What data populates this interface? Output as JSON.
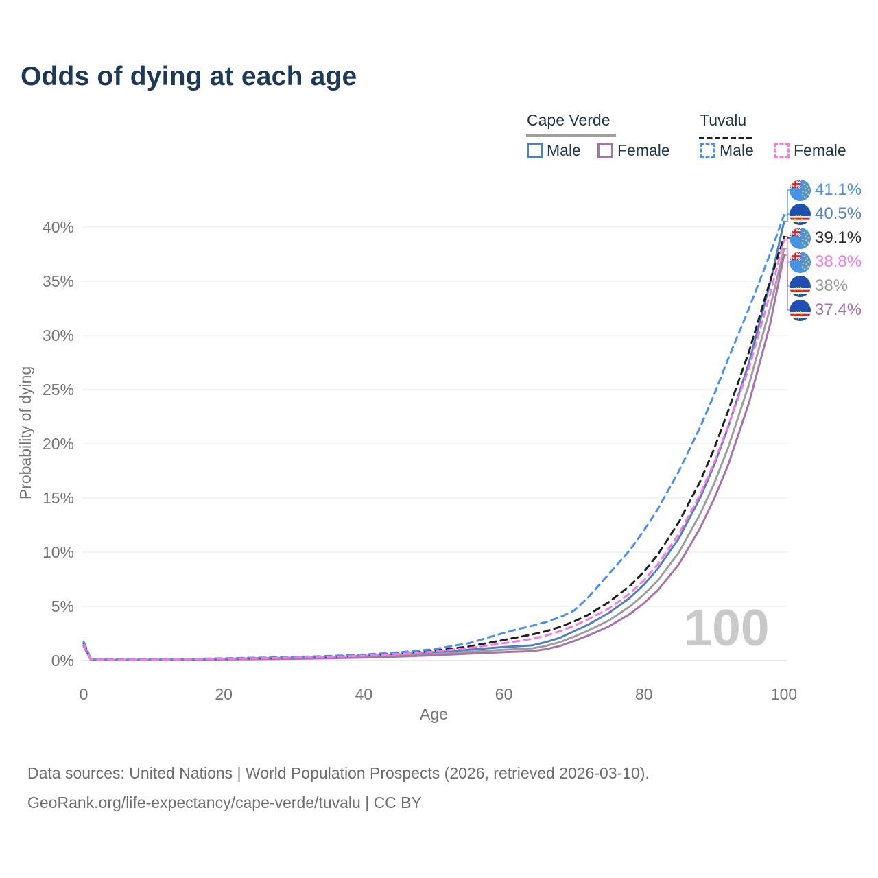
{
  "header": {
    "title": "Odds of dying at each age"
  },
  "legend": {
    "groups": [
      {
        "label": "Cape Verde",
        "line_color": "#9e9e9e",
        "line_style": "solid",
        "items": [
          {
            "label": "Male",
            "color": "#4e80c4",
            "style": "solid"
          },
          {
            "label": "Female",
            "color": "#a673ab",
            "style": "solid"
          }
        ]
      },
      {
        "label": "Tuvalu",
        "line_color": "#1f1f1f",
        "line_style": "dashed",
        "items": [
          {
            "label": "Male",
            "color": "#4a90f2",
            "style": "dashed"
          },
          {
            "label": "Female",
            "color": "#f878e2",
            "style": "dashed"
          }
        ]
      }
    ]
  },
  "end_labels": [
    {
      "value": "41.1%",
      "series": "Tuvalu Male",
      "color": "#4a90f2",
      "flag": "tuvalu"
    },
    {
      "value": "40.5%",
      "series": "Cape Verde Male",
      "color": "#5585c8",
      "flag": "cape-verde"
    },
    {
      "value": "39.1%",
      "series": "Tuvalu",
      "color": "#2b2b2b",
      "flag": "tuvalu"
    },
    {
      "value": "38.8%",
      "series": "Tuvalu Female",
      "color": "#f878e2",
      "flag": "tuvalu"
    },
    {
      "value": "38%",
      "series": "Cape Verde",
      "color": "#9b9b9b",
      "flag": "cape-verde"
    },
    {
      "value": "37.4%",
      "series": "Cape Verde Female",
      "color": "#a673ab",
      "flag": "cape-verde"
    }
  ],
  "footer": {
    "line1": "Data sources: United Nations | World Population Prospects (2026, retrieved 2026-03-10).",
    "line2": "GeoRank.org/life-expectancy/cape-verde/tuvalu | CC BY"
  },
  "chart_data": {
    "type": "line",
    "title": "Odds of dying at each age",
    "xlabel": "Age",
    "ylabel": "Probability of dying",
    "watermark": "100",
    "grid": true,
    "legend_position": "top-right",
    "xlim": [
      0,
      100
    ],
    "ylim": [
      0,
      43
    ],
    "x_tick_values": [
      0,
      20,
      40,
      60,
      80,
      100
    ],
    "x_tick_labels": [
      "0",
      "20",
      "40",
      "60",
      "80",
      "100"
    ],
    "y_tick_values": [
      0,
      5,
      10,
      15,
      20,
      25,
      30,
      35,
      40
    ],
    "y_tick_labels": [
      "0%",
      "5%",
      "10%",
      "15%",
      "20%",
      "25%",
      "30%",
      "35%",
      "40%"
    ],
    "ages": [
      0,
      1,
      2,
      5,
      10,
      15,
      20,
      25,
      30,
      35,
      40,
      45,
      50,
      55,
      60,
      62,
      64,
      66,
      68,
      70,
      72,
      75,
      78,
      80,
      82,
      85,
      88,
      90,
      92,
      95,
      98,
      100
    ],
    "series": [
      {
        "name": "Cape Verde Male",
        "country": "Cape Verde",
        "sex": "Male",
        "style": "solid",
        "color": "#4e80c4",
        "end_label": "40.5%",
        "label_index": 1,
        "values": [
          1.5,
          0.12,
          0.08,
          0.06,
          0.07,
          0.1,
          0.15,
          0.2,
          0.25,
          0.32,
          0.42,
          0.56,
          0.76,
          1.0,
          1.25,
          1.32,
          1.4,
          1.7,
          2.1,
          2.7,
          3.3,
          4.4,
          5.8,
          7.0,
          8.5,
          11.3,
          15.0,
          18.0,
          21.5,
          27.5,
          34.8,
          40.5
        ]
      },
      {
        "name": "Cape Verde",
        "country": "Cape Verde",
        "sex": "Both",
        "style": "solid",
        "color": "#9e9e9e",
        "end_label": "38%",
        "label_index": 4,
        "values": [
          1.4,
          0.1,
          0.07,
          0.05,
          0.06,
          0.08,
          0.12,
          0.16,
          0.2,
          0.26,
          0.34,
          0.45,
          0.6,
          0.8,
          1.0,
          1.06,
          1.12,
          1.35,
          1.7,
          2.2,
          2.75,
          3.7,
          5.0,
          6.1,
          7.4,
          10.0,
          13.5,
          16.3,
          19.6,
          25.5,
          32.5,
          38.0
        ]
      },
      {
        "name": "Cape Verde Female",
        "country": "Cape Verde",
        "sex": "Female",
        "style": "solid",
        "color": "#a673ab",
        "end_label": "37.4%",
        "label_index": 5,
        "values": [
          1.3,
          0.09,
          0.06,
          0.04,
          0.05,
          0.07,
          0.1,
          0.13,
          0.16,
          0.21,
          0.27,
          0.36,
          0.48,
          0.63,
          0.78,
          0.82,
          0.86,
          1.05,
          1.35,
          1.8,
          2.3,
          3.15,
          4.3,
          5.3,
          6.5,
          8.9,
          12.2,
          14.9,
          18.0,
          23.8,
          31.0,
          37.4
        ]
      },
      {
        "name": "Tuvalu",
        "country": "Tuvalu",
        "sex": "Both",
        "style": "dashed",
        "color": "#1f1f1f",
        "end_label": "39.1%",
        "label_index": 2,
        "values": [
          1.6,
          0.17,
          0.1,
          0.08,
          0.09,
          0.12,
          0.17,
          0.22,
          0.28,
          0.36,
          0.48,
          0.65,
          0.9,
          1.3,
          1.9,
          2.15,
          2.4,
          2.7,
          3.1,
          3.6,
          4.2,
          5.4,
          6.9,
          8.2,
          9.8,
          12.8,
          16.5,
          19.5,
          23.0,
          28.5,
          35.0,
          39.1
        ]
      },
      {
        "name": "Tuvalu Male",
        "country": "Tuvalu",
        "sex": "Male",
        "style": "dashed",
        "color": "#4a90f2",
        "end_label": "41.1%",
        "label_index": 0,
        "values": [
          1.75,
          0.2,
          0.12,
          0.09,
          0.1,
          0.14,
          0.2,
          0.26,
          0.33,
          0.42,
          0.55,
          0.75,
          1.05,
          1.6,
          2.55,
          2.9,
          3.2,
          3.55,
          4.0,
          4.6,
          5.8,
          8.0,
          10.2,
          12.0,
          14.0,
          17.5,
          21.5,
          24.5,
          27.8,
          32.5,
          37.5,
          41.1
        ]
      },
      {
        "name": "Tuvalu Female",
        "country": "Tuvalu",
        "sex": "Female",
        "style": "dashed",
        "color": "#f878e2",
        "end_label": "38.8%",
        "label_index": 3,
        "values": [
          1.45,
          0.15,
          0.09,
          0.07,
          0.08,
          0.11,
          0.15,
          0.2,
          0.26,
          0.33,
          0.44,
          0.6,
          0.82,
          1.15,
          1.6,
          1.8,
          2.0,
          2.3,
          2.7,
          3.2,
          3.8,
          4.8,
          6.2,
          7.4,
          8.9,
          11.7,
          15.3,
          18.2,
          21.6,
          27.0,
          33.8,
          38.8
        ]
      }
    ]
  }
}
